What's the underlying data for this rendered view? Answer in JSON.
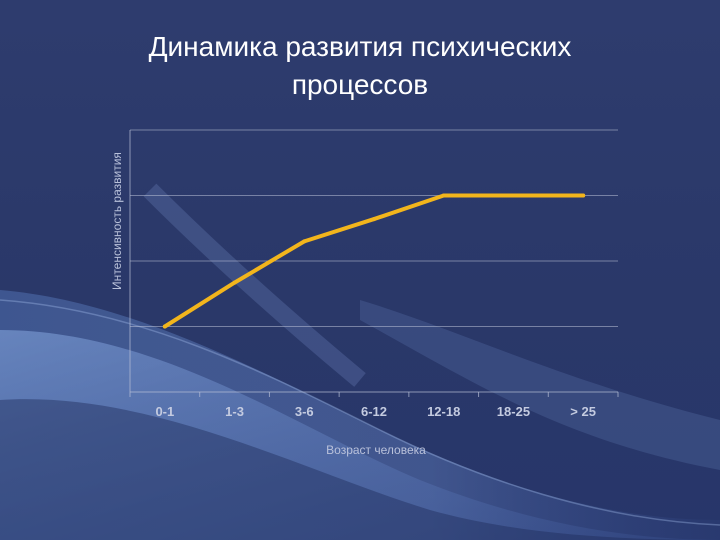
{
  "slide": {
    "title_line1": "Динамика развития психических",
    "title_line2": "процессов"
  },
  "colors": {
    "background": "#2b3a6b",
    "line": "#f2b51c",
    "grid": "#b8bfd6"
  },
  "chart_data": {
    "type": "line",
    "title": "Динамика развития психических процессов",
    "xlabel": "Возраст человека",
    "ylabel": "Интенсивность развития",
    "categories": [
      "0-1",
      "1-3",
      "3-6",
      "6-12",
      "12-18",
      "18-25",
      "> 25"
    ],
    "series": [
      {
        "values": [
          1.0,
          1.67,
          2.3,
          2.64,
          3.0,
          3.0,
          3.0
        ]
      }
    ],
    "ylim": [
      0,
      4
    ],
    "grid": true,
    "legend": "none"
  }
}
